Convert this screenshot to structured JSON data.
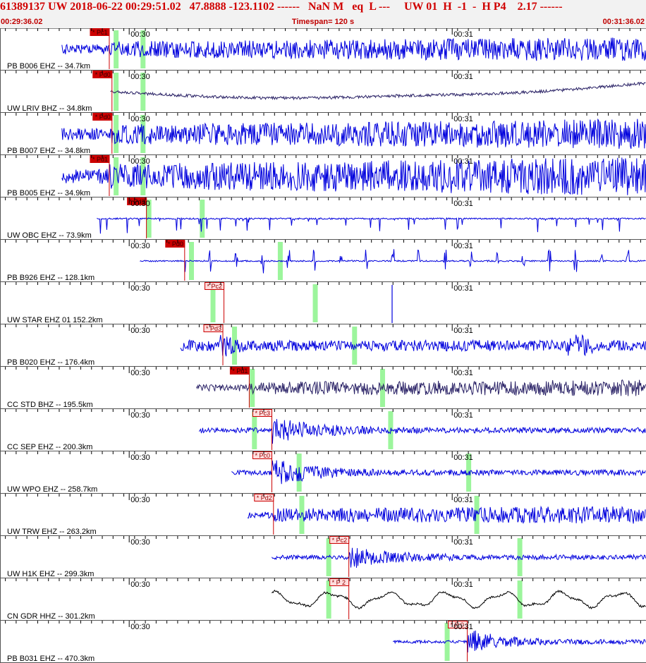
{
  "header": {
    "title": "61389137 UW 2018-06-22 00:29:51.02   47.8888 -123.1102 ------   NaN M   eq  L ---     UW 01  H  -1  -  H P4    2.17 ------",
    "start_time": "00:29:36.02",
    "timespan": "Timespan= 120 s",
    "end_time": "00:31:36.02"
  },
  "colors": {
    "trace_blue": "#0000dd",
    "trace_navy": "#2a2266",
    "trace_black": "#000000",
    "pick_red": "#cc0000",
    "pick_box_fill": "#ffdddd",
    "green_marker": "#9cf59c",
    "grid": "#000000"
  },
  "chart_data": {
    "type": "line",
    "time_start_s": 0,
    "time_end_s": 120,
    "minute_labels": [
      {
        "t": 24,
        "label": "00:30"
      },
      {
        "t": 84,
        "label": "00:31"
      }
    ],
    "traces": [
      {
        "label": "PB B006 EHZ -- 34.7km",
        "pick": "Pc1",
        "pick_style": "solid",
        "pick_t": 20.3,
        "green": [
          21.5,
          26.5
        ],
        "start_t": 11.5,
        "color": "blue",
        "style": "noise",
        "amp": 0.45,
        "seed": 11
      },
      {
        "label": "UW LRIV BHZ -- 34.8km",
        "pick": "Pd0",
        "pick_style": "solid",
        "pick_t": 20.8,
        "green": [
          21.5,
          26.5
        ],
        "start_t": 20.5,
        "color": "navy",
        "style": "wander",
        "amp": 0.25,
        "seed": 22
      },
      {
        "label": "PB B007 EHZ -- 34.8km",
        "pick": "Pd0",
        "pick_style": "solid",
        "pick_t": 20.8,
        "green": [
          21.5,
          26.5
        ],
        "start_t": 11.5,
        "color": "blue",
        "style": "noise",
        "amp": 0.55,
        "seed": 33
      },
      {
        "label": "PB B005 EHZ -- 34.9km",
        "pick": "Pd1",
        "pick_style": "solid",
        "pick_t": 20.3,
        "green": [
          21.5,
          26.5
        ],
        "start_t": 11.5,
        "color": "blue",
        "style": "noise",
        "amp": 0.7,
        "seed": 44
      },
      {
        "label": "UW OBC EHZ -- 73.9km",
        "pick": "Pd3",
        "pick_style": "solid",
        "pick_t": 27.2,
        "green": [
          27.6,
          37.5
        ],
        "start_t": 18,
        "color": "blue",
        "style": "spiky",
        "amp": 0.55,
        "seed": 55
      },
      {
        "label": "PB B926 EHZ -- 128.1km",
        "pick": "Pd0",
        "pick_style": "solid",
        "pick_t": 34.3,
        "green": [
          35.5,
          52
        ],
        "start_t": 26,
        "color": "blue",
        "style": "bursts",
        "amp": 0.35,
        "seed": 66
      },
      {
        "label": "UW STAR EHZ 01 152.2km",
        "pick": "Pc2",
        "pick_style": "outline",
        "pick_t": 41.6,
        "green": [
          39.5,
          58.5
        ],
        "start_t": 999,
        "color": "blue",
        "style": "flat",
        "amp": 0.1,
        "seed": 77
      },
      {
        "label": "PB B020 EHZ -- 176.4km",
        "pick": "Pd3",
        "pick_style": "outline",
        "pick_t": 41.4,
        "green": [
          43.5,
          65.8
        ],
        "start_t": 33.5,
        "color": "blue",
        "style": "noise_bursts",
        "amp": 0.35,
        "seed": 88
      },
      {
        "label": "CC STD BHZ -- 195.5km",
        "pick": "Pd1",
        "pick_style": "solid",
        "pick_t": 46.3,
        "green": [
          46.8,
          71
        ],
        "start_t": 36.5,
        "color": "navy",
        "style": "noise",
        "amp": 0.3,
        "seed": 99
      },
      {
        "label": "CC SEP EHZ -- 200.3km",
        "pick": "Pc3",
        "pick_style": "outline",
        "pick_t": 50.5,
        "green": [
          47.2,
          72.5
        ],
        "start_t": 37,
        "color": "blue",
        "style": "event",
        "amp": 0.35,
        "seed": 101
      },
      {
        "label": "UW WPO EHZ -- 258.7km",
        "pick": "Pc0",
        "pick_style": "outline",
        "pick_t": 50.5,
        "green": [
          55.5,
          87
        ],
        "start_t": 43,
        "color": "blue",
        "style": "event",
        "amp": 0.35,
        "seed": 112
      },
      {
        "label": "UW TRW EHZ -- 263.2km",
        "pick": "Pd2",
        "pick_style": "outline",
        "pick_t": 50.8,
        "green": [
          56,
          88.5
        ],
        "start_t": 46,
        "color": "blue",
        "style": "noise",
        "amp": 0.32,
        "seed": 123
      },
      {
        "label": "UW H1K EHZ -- 299.3km",
        "pick": "Pc2",
        "pick_style": "outline",
        "pick_t": 64.8,
        "green": [
          61,
          96.5
        ],
        "start_t": 50.5,
        "color": "blue",
        "style": "event",
        "amp": 0.3,
        "seed": 134
      },
      {
        "label": "CN GDR HHZ -- 301.2km",
        "pick": "P 2",
        "pick_style": "outline",
        "pick_t": 64.8,
        "green": [
          61,
          96.5
        ],
        "start_t": 50.5,
        "color": "black",
        "style": "wave",
        "amp": 0.45,
        "seed": 145
      },
      {
        "label": "PB B031 EHZ -- 470.3km",
        "pick": "P 0",
        "pick_style": "outline",
        "pick_t": 86.8,
        "green": [
          83
        ],
        "start_t": 73,
        "color": "blue",
        "style": "late_event",
        "amp": 0.45,
        "seed": 156
      }
    ]
  }
}
